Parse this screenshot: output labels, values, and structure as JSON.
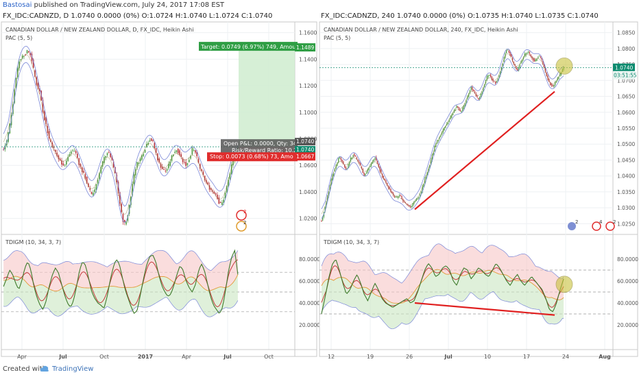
{
  "header": {
    "author": "Bastosai",
    "published_text": " published on TradingView.com, July 24, 2017 17:08 EST"
  },
  "charts": {
    "left": {
      "symbol_line": "FX_IDC:CADNZD, D  1.0740 0.0000 (0%) O:1.0724 H:1.0740 L:1.0724 C:1.0740",
      "title": "CANADIAN DOLLAR / NEW ZEALAND DOLLAR, D, FX_IDC, Heikin Ashi",
      "indicator": "PAC (5, 5)",
      "osc_label": "TDIGM (10, 34, 3, 7)",
      "target_label": "Target: 0.0749 (6.97%) 749, Amou",
      "target_price": "1.1489",
      "pnl_label": "Open P&L: 0.0000, Qty: 34",
      "rr_label": "Risk/Reward Ratio: 10.2",
      "stop_label": "Stop: 0.0073 (0.68%) 73, Amo",
      "stop_price": "1.0667",
      "price_tag1": "1.0740",
      "price_tag2": "1.0740",
      "badge1": "2",
      "badge2": "2"
    },
    "right": {
      "symbol_line": "FX_IDC:CADNZD, 240  1.0740 0.0000 (0%) O:1.0735 H:1.0740 L:1.0735 C:1.0740",
      "title": "CANADIAN DOLLAR / NEW ZEALAND DOLLAR, 240, FX_IDC, Heikin Ashi",
      "indicator": "PAC (5, 5)",
      "osc_label": "TDIGM (10, 34, 3, 7)",
      "price_tag": "1.0740",
      "countdown": "03:51:55",
      "badge1": "2",
      "badge2": "2",
      "badge3": "4"
    }
  },
  "chart_data": [
    {
      "type": "candlestick",
      "title": "CANADIAN DOLLAR / NEW ZEALAND DOLLAR, D, FX_IDC, Heikin Ashi",
      "x_ticks": [
        "Apr",
        "Jul",
        "Oct",
        "2017",
        "Apr",
        "Jul",
        "Oct"
      ],
      "y_ticks": [
        "1.1600",
        "1.1400",
        "1.1200",
        "1.1000",
        "1.0800",
        "1.0600",
        "1.0400",
        "1.0200"
      ],
      "ylim": [
        1.01,
        1.166
      ],
      "close_series": [
        1.072,
        1.078,
        1.09,
        1.105,
        1.125,
        1.138,
        1.142,
        1.144,
        1.146,
        1.143,
        1.13,
        1.12,
        1.115,
        1.1,
        1.09,
        1.08,
        1.075,
        1.07,
        1.065,
        1.062,
        1.06,
        1.065,
        1.07,
        1.072,
        1.068,
        1.06,
        1.055,
        1.05,
        1.042,
        1.038,
        1.042,
        1.05,
        1.058,
        1.065,
        1.07,
        1.068,
        1.06,
        1.05,
        1.035,
        1.02,
        1.015,
        1.025,
        1.04,
        1.055,
        1.062,
        1.065,
        1.07,
        1.076,
        1.08,
        1.078,
        1.07,
        1.062,
        1.058,
        1.055,
        1.058,
        1.065,
        1.07,
        1.072,
        1.068,
        1.063,
        1.06,
        1.065,
        1.072,
        1.07,
        1.062,
        1.055,
        1.05,
        1.045,
        1.042,
        1.04,
        1.038,
        1.03,
        1.032,
        1.04,
        1.05,
        1.06,
        1.068,
        1.074
      ],
      "series": [
        {
          "name": "PAC (5, 5)",
          "values": "channel"
        }
      ],
      "annotations": {
        "current_price": 1.074,
        "target_price": 1.1489,
        "stop_price": 1.0667,
        "target": "0.0749 (6.97%) 749",
        "stop": "0.0073 (0.68%) 73",
        "risk_reward": 10.2
      },
      "oscillator": {
        "name": "TDIGM (10, 34, 3, 7)",
        "y_ticks": [
          "80.0000",
          "60.0000",
          "40.0000",
          "20.0000"
        ],
        "ylim": [
          0,
          100
        ],
        "levels": [
          68,
          50,
          32
        ],
        "rsi": [
          55,
          62,
          70,
          66,
          58,
          52,
          60,
          72,
          78,
          70,
          55,
          45,
          38,
          34,
          42,
          55,
          65,
          72,
          68,
          58,
          48,
          40,
          36,
          42,
          55,
          70,
          78,
          74,
          62,
          50,
          44,
          40,
          38,
          35,
          45,
          60,
          72,
          80,
          76,
          64,
          52,
          44,
          36,
          30,
          34,
          48,
          62,
          74,
          82,
          84,
          78,
          66,
          56,
          50,
          46,
          48,
          56,
          66,
          74,
          70,
          60,
          54,
          50,
          56,
          68,
          76,
          70,
          58,
          46,
          38,
          34,
          30,
          36,
          52,
          70,
          82,
          88,
          66
        ]
      }
    },
    {
      "type": "candlestick",
      "title": "CANADIAN DOLLAR / NEW ZEALAND DOLLAR, 240, FX_IDC, Heikin Ashi",
      "x_ticks": [
        "12",
        "19",
        "26",
        "Jul",
        "10",
        "17",
        "24",
        "Aug"
      ],
      "y_ticks": [
        "1.0850",
        "1.0800",
        "1.0750",
        "1.0700",
        "1.0650",
        "1.0600",
        "1.0550",
        "1.0500",
        "1.0450",
        "1.0400",
        "1.0350",
        "1.0300",
        "1.0250"
      ],
      "ylim": [
        1.0225,
        1.0875
      ],
      "close_series": [
        1.026,
        1.03,
        1.035,
        1.04,
        1.043,
        1.046,
        1.044,
        1.042,
        1.045,
        1.047,
        1.045,
        1.043,
        1.04,
        1.042,
        1.044,
        1.046,
        1.043,
        1.04,
        1.038,
        1.036,
        1.034,
        1.033,
        1.034,
        1.032,
        1.031,
        1.03,
        1.032,
        1.033,
        1.035,
        1.039,
        1.042,
        1.046,
        1.05,
        1.052,
        1.054,
        1.056,
        1.058,
        1.06,
        1.062,
        1.06,
        1.062,
        1.065,
        1.068,
        1.066,
        1.064,
        1.066,
        1.07,
        1.072,
        1.07,
        1.069,
        1.072,
        1.076,
        1.08,
        1.078,
        1.075,
        1.073,
        1.076,
        1.078,
        1.079,
        1.077,
        1.076,
        1.078,
        1.076,
        1.072,
        1.069,
        1.068,
        1.07,
        1.072,
        1.074
      ],
      "series": [
        {
          "name": "PAC (5, 5)",
          "values": "channel"
        }
      ],
      "annotations": {
        "current_price": 1.074,
        "trendline_from": {
          "x": "26",
          "y": 1.0295
        },
        "trendline_to": {
          "x": "24",
          "y": 1.0665
        }
      },
      "oscillator": {
        "name": "TDIGM (10, 34, 3, 7)",
        "y_ticks": [
          "80.0000",
          "60.0000",
          "40.0000",
          "20.0000"
        ],
        "ylim": [
          0,
          100
        ],
        "levels": [
          70,
          50,
          30
        ],
        "rsi": [
          30,
          45,
          62,
          75,
          80,
          70,
          58,
          48,
          52,
          60,
          66,
          58,
          48,
          42,
          50,
          58,
          52,
          44,
          40,
          38,
          36,
          38,
          40,
          42,
          44,
          40,
          42,
          50,
          60,
          70,
          76,
          72,
          64,
          66,
          72,
          74,
          70,
          60,
          56,
          66,
          72,
          70,
          62,
          66,
          72,
          70,
          66,
          64,
          70,
          76,
          72,
          66,
          60,
          56,
          62,
          66,
          60,
          56,
          60,
          64,
          60,
          56,
          52,
          44,
          34,
          32,
          40,
          52,
          62
        ],
        "divergence_from": {
          "x": "26",
          "y": 40
        },
        "divergence_to": {
          "x": "24",
          "y": 29
        }
      }
    }
  ]
}
